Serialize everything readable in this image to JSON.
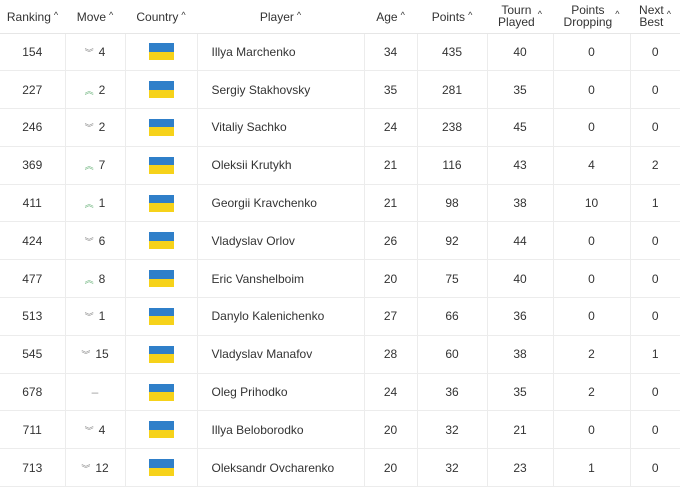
{
  "headers": [
    [
      "Ranking",
      ""
    ],
    [
      "Move",
      ""
    ],
    [
      "Country",
      ""
    ],
    [
      "Player",
      ""
    ],
    [
      "Age",
      ""
    ],
    [
      "Points",
      ""
    ],
    [
      "Tourn",
      "Played"
    ],
    [
      "Points",
      "Dropping"
    ],
    [
      "Next",
      "Best"
    ]
  ],
  "colors": {
    "flag_blue": "#2f7fc9",
    "flag_yellow": "#f6d21a",
    "move_up": "#6cb37c",
    "move_down": "#888888"
  },
  "rows": [
    {
      "ranking": "154",
      "dir": "down",
      "move": "4",
      "country": "Ukraine",
      "player": "Illya Marchenko",
      "age": "34",
      "points": "435",
      "tourn": "40",
      "dropping": "0",
      "next": "0"
    },
    {
      "ranking": "227",
      "dir": "up",
      "move": "2",
      "country": "Ukraine",
      "player": "Sergiy Stakhovsky",
      "age": "35",
      "points": "281",
      "tourn": "35",
      "dropping": "0",
      "next": "0"
    },
    {
      "ranking": "246",
      "dir": "down",
      "move": "2",
      "country": "Ukraine",
      "player": "Vitaliy Sachko",
      "age": "24",
      "points": "238",
      "tourn": "45",
      "dropping": "0",
      "next": "0"
    },
    {
      "ranking": "369",
      "dir": "up",
      "move": "7",
      "country": "Ukraine",
      "player": "Oleksii Krutykh",
      "age": "21",
      "points": "116",
      "tourn": "43",
      "dropping": "4",
      "next": "2"
    },
    {
      "ranking": "411",
      "dir": "up",
      "move": "1",
      "country": "Ukraine",
      "player": "Georgii Kravchenko",
      "age": "21",
      "points": "98",
      "tourn": "38",
      "dropping": "10",
      "next": "1"
    },
    {
      "ranking": "424",
      "dir": "down",
      "move": "6",
      "country": "Ukraine",
      "player": "Vladyslav Orlov",
      "age": "26",
      "points": "92",
      "tourn": "44",
      "dropping": "0",
      "next": "0"
    },
    {
      "ranking": "477",
      "dir": "up",
      "move": "8",
      "country": "Ukraine",
      "player": "Eric Vanshelboim",
      "age": "20",
      "points": "75",
      "tourn": "40",
      "dropping": "0",
      "next": "0"
    },
    {
      "ranking": "513",
      "dir": "down",
      "move": "1",
      "country": "Ukraine",
      "player": "Danylo Kalenichenko",
      "age": "27",
      "points": "66",
      "tourn": "36",
      "dropping": "0",
      "next": "0"
    },
    {
      "ranking": "545",
      "dir": "down",
      "move": "15",
      "country": "Ukraine",
      "player": "Vladyslav Manafov",
      "age": "28",
      "points": "60",
      "tourn": "38",
      "dropping": "2",
      "next": "1"
    },
    {
      "ranking": "678",
      "dir": "none",
      "move": "–",
      "country": "Ukraine",
      "player": "Oleg Prihodko",
      "age": "24",
      "points": "36",
      "tourn": "35",
      "dropping": "2",
      "next": "0"
    },
    {
      "ranking": "711",
      "dir": "down",
      "move": "4",
      "country": "Ukraine",
      "player": "Illya Beloborodko",
      "age": "20",
      "points": "32",
      "tourn": "21",
      "dropping": "0",
      "next": "0"
    },
    {
      "ranking": "713",
      "dir": "down",
      "move": "12",
      "country": "Ukraine",
      "player": "Oleksandr Ovcharenko",
      "age": "20",
      "points": "32",
      "tourn": "23",
      "dropping": "1",
      "next": "0"
    }
  ]
}
